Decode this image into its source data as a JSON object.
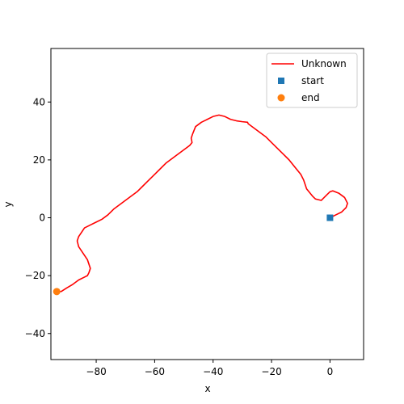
{
  "chart_data": {
    "type": "line",
    "title": "",
    "xlabel": "x",
    "ylabel": "y",
    "xlim": [
      -95.5,
      11.5
    ],
    "ylim": [
      -49,
      58.5
    ],
    "xticks": [
      -80,
      -60,
      -40,
      -20,
      0
    ],
    "yticks": [
      -40,
      -20,
      0,
      20,
      40
    ],
    "x_tick_labels": [
      "−80",
      "−60",
      "−40",
      "−20",
      "0"
    ],
    "y_tick_labels": [
      "−40",
      "−20",
      "0",
      "20",
      "40"
    ],
    "grid": false,
    "legend_position": "top-right",
    "series": [
      {
        "name": "Unknown",
        "kind": "line",
        "color": "#ff0000",
        "x": [
          0,
          2,
          4,
          5.5,
          6,
          5,
          3,
          1,
          0,
          -1,
          -3,
          -5,
          -6,
          -8,
          -9,
          -10,
          -12,
          -14,
          -16,
          -18,
          -20,
          -22,
          -24,
          -26,
          -28,
          -28.2,
          -30,
          -32,
          -34,
          -36,
          -38,
          -40,
          -42,
          -44,
          -46,
          -47,
          -47.5,
          -47.2,
          -48,
          -50,
          -52,
          -54,
          -56,
          -58,
          -60,
          -62,
          -64,
          -66,
          -68,
          -70,
          -72,
          -74,
          -76,
          -78,
          -80,
          -82,
          -84,
          -85,
          -86,
          -86.5,
          -86,
          -85,
          -84,
          -83,
          -82.5,
          -82,
          -82.5,
          -83,
          -84,
          -86,
          -88,
          -90,
          -92,
          -93.5
        ],
        "y": [
          0,
          1,
          2,
          3.5,
          5,
          7,
          8.5,
          9.3,
          9,
          8,
          6,
          6.5,
          7.5,
          10,
          13,
          15,
          17.5,
          20,
          22,
          24,
          26,
          28,
          29.5,
          31,
          32.5,
          33,
          33.2,
          33.5,
          34,
          35,
          35.5,
          35,
          34,
          33,
          31.5,
          29,
          27.5,
          26,
          25,
          23.5,
          22,
          20.5,
          19,
          17,
          15,
          13,
          11,
          9,
          7.5,
          6,
          4.5,
          3,
          1,
          -0.5,
          -1.5,
          -2.5,
          -3.5,
          -5,
          -6.5,
          -8,
          -10,
          -11.5,
          -13,
          -14.5,
          -16,
          -17.5,
          -19,
          -20,
          -20.5,
          -21.5,
          -23,
          -24.2,
          -25.5,
          -25.5
        ]
      },
      {
        "name": "start",
        "kind": "scatter",
        "marker": "square",
        "color": "#1f77b4",
        "x": [
          0
        ],
        "y": [
          0
        ]
      },
      {
        "name": "end",
        "kind": "scatter",
        "marker": "circle",
        "color": "#ff7f0e",
        "x": [
          -93.5
        ],
        "y": [
          -25.5
        ]
      }
    ]
  }
}
